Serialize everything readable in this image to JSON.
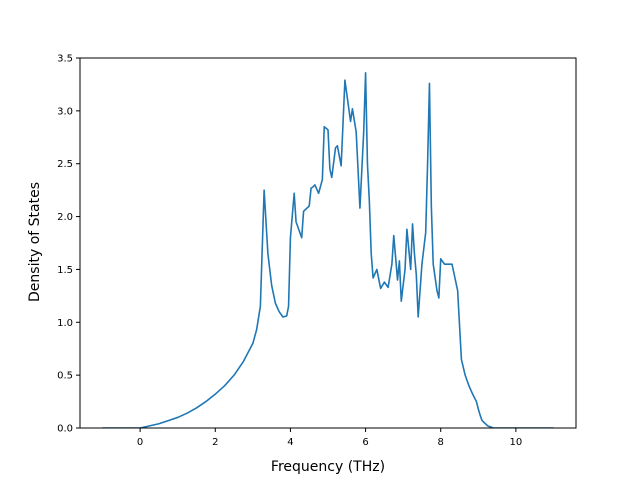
{
  "chart_data": {
    "type": "line",
    "title": "",
    "xlabel": "Frequency (THz)",
    "ylabel": "Density of States",
    "xlim": [
      -1.6,
      11.6
    ],
    "ylim": [
      0.0,
      3.5
    ],
    "xticks": [
      0,
      2,
      4,
      6,
      8,
      10
    ],
    "yticks": [
      0.0,
      0.5,
      1.0,
      1.5,
      2.0,
      2.5,
      3.0,
      3.5
    ],
    "xtick_labels": [
      "0",
      "2",
      "4",
      "6",
      "8",
      "10"
    ],
    "ytick_labels": [
      "0.0",
      "0.5",
      "1.0",
      "1.5",
      "2.0",
      "2.5",
      "3.0",
      "3.5"
    ],
    "grid": false,
    "legend": false,
    "series": [
      {
        "color": "#1f77b4",
        "x": [
          -1.0,
          -0.5,
          0.0,
          0.25,
          0.5,
          0.75,
          1.0,
          1.25,
          1.5,
          1.75,
          2.0,
          2.25,
          2.5,
          2.75,
          3.0,
          3.1,
          3.2,
          3.3,
          3.4,
          3.5,
          3.6,
          3.7,
          3.8,
          3.9,
          3.95,
          4.0,
          4.1,
          4.15,
          4.3,
          4.35,
          4.5,
          4.55,
          4.6,
          4.65,
          4.75,
          4.85,
          4.9,
          5.0,
          5.05,
          5.1,
          5.2,
          5.25,
          5.35,
          5.45,
          5.6,
          5.65,
          5.75,
          5.85,
          5.95,
          6.0,
          6.05,
          6.1,
          6.15,
          6.2,
          6.3,
          6.4,
          6.5,
          6.6,
          6.7,
          6.75,
          6.85,
          6.9,
          6.95,
          7.05,
          7.1,
          7.2,
          7.25,
          7.3,
          7.35,
          7.4,
          7.5,
          7.6,
          7.65,
          7.7,
          7.75,
          7.8,
          7.9,
          7.95,
          8.0,
          8.1,
          8.2,
          8.3,
          8.45,
          8.55,
          8.65,
          8.75,
          8.85,
          8.95,
          9.0,
          9.05,
          9.1,
          9.25,
          9.4,
          9.55,
          9.7,
          9.85,
          10.0,
          10.05,
          10.2,
          10.5,
          11.0
        ],
        "y": [
          0.0,
          0.0,
          0.0,
          0.02,
          0.04,
          0.07,
          0.1,
          0.14,
          0.19,
          0.25,
          0.32,
          0.4,
          0.5,
          0.63,
          0.8,
          0.93,
          1.15,
          2.25,
          1.65,
          1.35,
          1.18,
          1.1,
          1.05,
          1.06,
          1.15,
          1.8,
          2.22,
          1.95,
          1.8,
          2.05,
          2.1,
          2.27,
          2.28,
          2.3,
          2.22,
          2.35,
          2.85,
          2.82,
          2.45,
          2.37,
          2.65,
          2.67,
          2.48,
          3.29,
          2.9,
          3.02,
          2.8,
          2.08,
          2.8,
          3.36,
          2.5,
          2.15,
          1.65,
          1.42,
          1.5,
          1.32,
          1.38,
          1.33,
          1.55,
          1.82,
          1.4,
          1.58,
          1.2,
          1.5,
          1.88,
          1.5,
          1.93,
          1.65,
          1.45,
          1.05,
          1.55,
          1.85,
          2.5,
          3.26,
          2.1,
          1.55,
          1.3,
          1.23,
          1.6,
          1.55,
          1.55,
          1.55,
          1.3,
          0.65,
          0.5,
          0.4,
          0.32,
          0.25,
          0.18,
          0.12,
          0.07,
          0.02,
          0.0,
          0.0,
          0.0,
          0.0,
          0.0,
          0.0,
          0.0,
          0.0,
          0.0
        ]
      }
    ]
  }
}
